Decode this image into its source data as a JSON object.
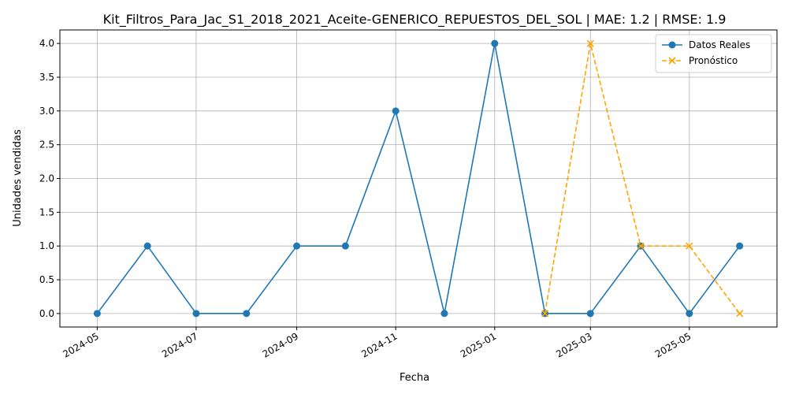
{
  "chart_data": {
    "type": "line",
    "title": "Kit_Filtros_Para_Jac_S1_2018_2021_Aceite-GENERICO_REPUESTOS_DEL_SOL | MAE: 1.2 | RMSE: 1.9",
    "xlabel": "Fecha",
    "ylabel": "Unidades vendidas",
    "x_tick_labels": [
      "2024-05",
      "2024-07",
      "2024-09",
      "2024-11",
      "2025-01",
      "2025-03",
      "2025-05"
    ],
    "y_tick_labels": [
      "0.0",
      "0.5",
      "1.0",
      "1.5",
      "2.0",
      "2.5",
      "3.0",
      "3.5",
      "4.0"
    ],
    "ylim": [
      -0.2,
      4.2
    ],
    "xlim": [
      "2024-04-08",
      "2025-06-24"
    ],
    "grid": true,
    "legend_position": "top-right",
    "series": [
      {
        "name": "Datos Reales",
        "color": "#1f77b4",
        "marker": "circle",
        "line_style": "solid",
        "x": [
          "2024-05-01",
          "2024-06-01",
          "2024-07-01",
          "2024-08-01",
          "2024-09-01",
          "2024-10-01",
          "2024-11-01",
          "2024-12-01",
          "2025-01-01",
          "2025-02-01",
          "2025-03-01",
          "2025-04-01",
          "2025-05-01",
          "2025-06-01"
        ],
        "values": [
          0,
          1,
          0,
          0,
          1,
          1,
          3,
          0,
          4,
          0,
          0,
          1,
          0,
          1
        ]
      },
      {
        "name": "Pronóstico",
        "color": "#ffa500",
        "marker": "x",
        "line_style": "dashed",
        "x": [
          "2025-02-01",
          "2025-03-01",
          "2025-04-01",
          "2025-05-01",
          "2025-06-01"
        ],
        "values": [
          0,
          4,
          1,
          1,
          0
        ]
      }
    ]
  }
}
